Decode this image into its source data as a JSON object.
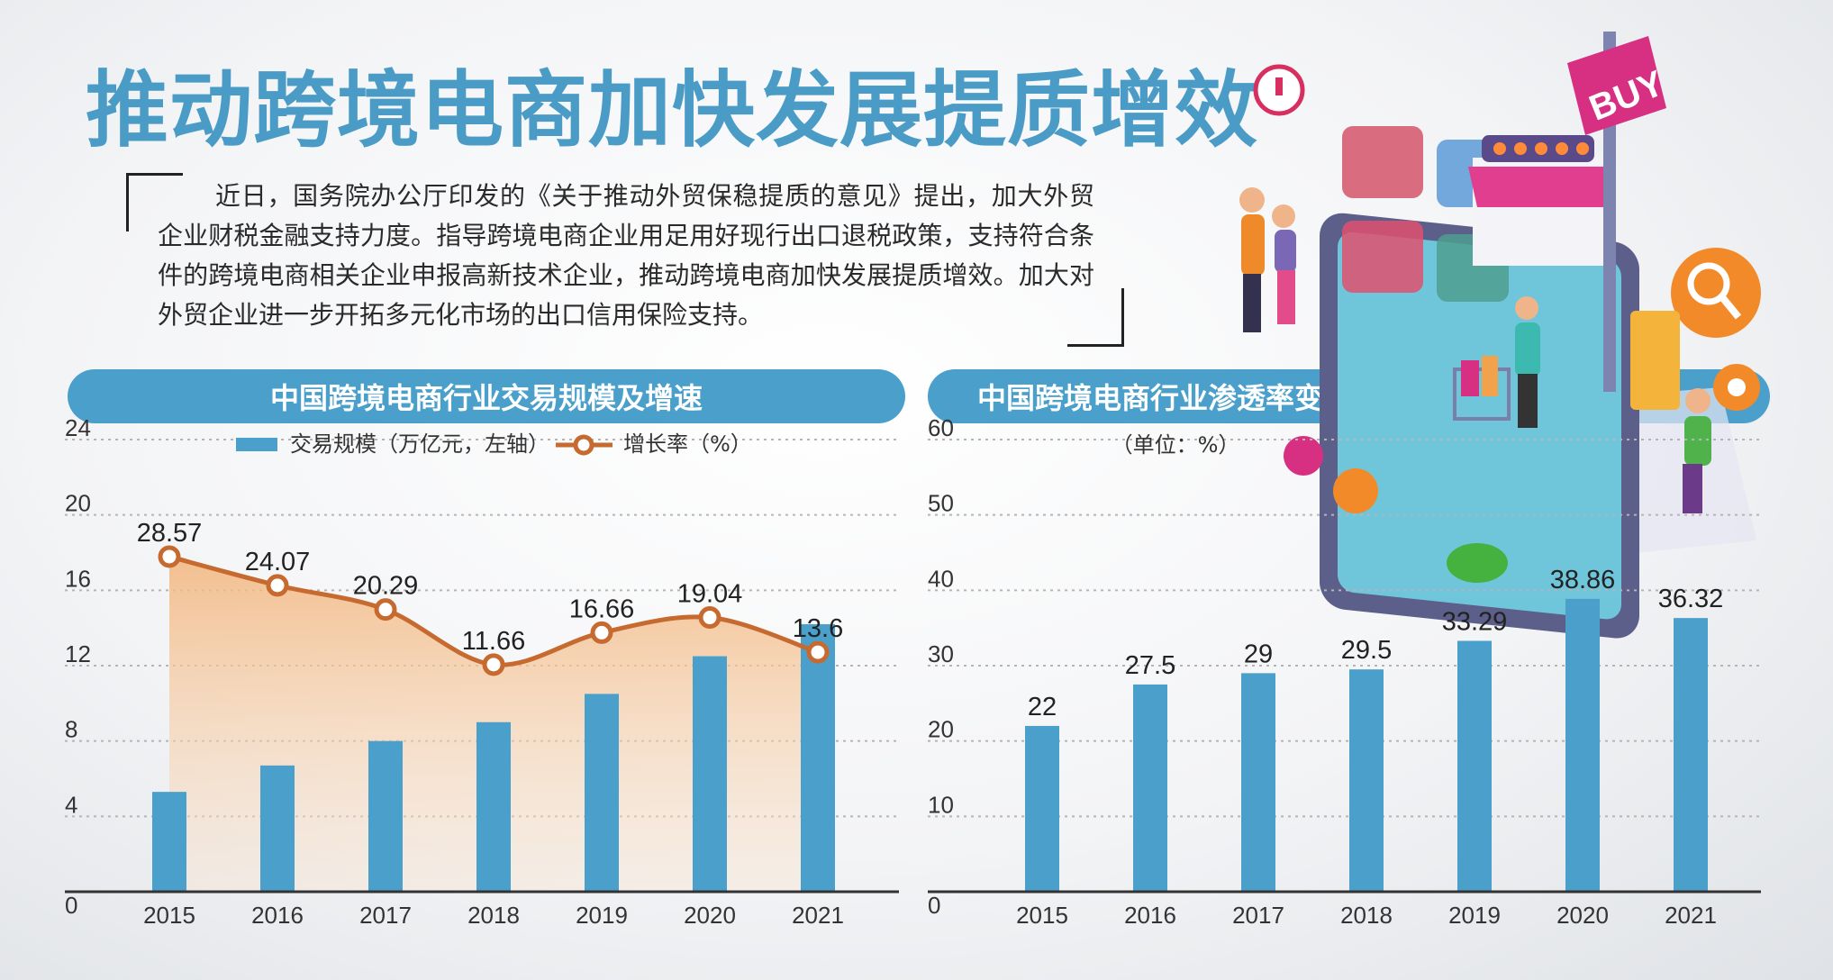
{
  "title": "推动跨境电商加快发展提质增效",
  "intro": "近日，国务院办公厅印发的《关于推动外贸保稳提质的意见》提出，加大外贸企业财税金融支持力度。指导跨境电商企业用足用好现行出口退税政策，支持符合条件的跨境电商相关企业申报高新技术企业，推动跨境电商加快发展提质增效。加大对外贸企业进一步开拓多元化市场的出口信用保险支持。",
  "illustration": {
    "buy_sign": "BUY",
    "icons": [
      "alert-icon",
      "shop-icon",
      "search-icon",
      "gear-icon",
      "cart-icon",
      "card-icon",
      "truck-icon",
      "check-icon",
      "download-icon",
      "pause-icon"
    ]
  },
  "colors": {
    "bar": "#4aa0cb",
    "line": "#c66a30",
    "area": "#f5c89a",
    "title": "#4a9cc6"
  },
  "chart_data": [
    {
      "type": "bar",
      "title": "中国跨境电商行业交易规模及增速",
      "categories": [
        "2015",
        "2016",
        "2017",
        "2018",
        "2019",
        "2020",
        "2021"
      ],
      "series": [
        {
          "name": "交易规模（万亿元，左轴）",
          "values": [
            5.3,
            6.7,
            8.0,
            9.0,
            10.5,
            12.5,
            14.2
          ]
        },
        {
          "name": "增长率（%）",
          "type": "line",
          "values": [
            28.57,
            24.07,
            20.29,
            11.66,
            16.66,
            19.04,
            13.6
          ]
        }
      ],
      "ylim": [
        0,
        24
      ],
      "yticks": [
        "0",
        "4",
        "8",
        "12",
        "16",
        "20",
        "24"
      ],
      "line_ylim": [
        -23.9,
        46.9
      ],
      "data_labels": [
        "28.57",
        "24.07",
        "20.29",
        "11.66",
        "16.66",
        "19.04",
        "13.6"
      ],
      "grid": true,
      "legend_position": "top-center"
    },
    {
      "type": "bar",
      "title": "中国跨境电商行业渗透率变化",
      "subtitle": "（单位：%）",
      "categories": [
        "2015",
        "2016",
        "2017",
        "2018",
        "2019",
        "2020",
        "2021"
      ],
      "values": [
        22,
        27.5,
        29,
        29.5,
        33.29,
        38.86,
        36.32
      ],
      "data_labels": [
        "22",
        "27.5",
        "29",
        "29.5",
        "33.29",
        "38.86",
        "36.32"
      ],
      "ylim": [
        0,
        60
      ],
      "yticks": [
        "0",
        "10",
        "20",
        "30",
        "40",
        "50",
        "60"
      ],
      "grid": true
    }
  ]
}
